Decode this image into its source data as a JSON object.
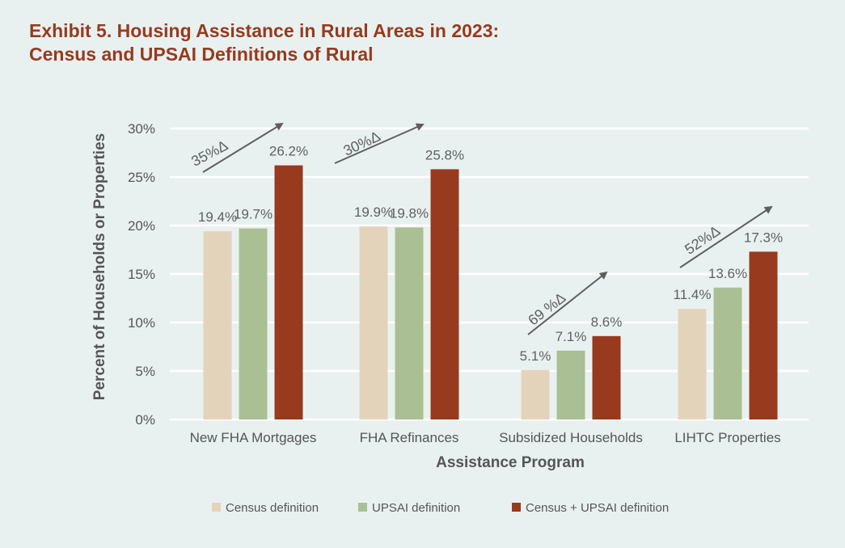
{
  "title_lines": [
    "Exhibit 5. Housing Assistance in Rural Areas in 2023:",
    "Census and UPSAI Definitions of Rural"
  ],
  "chart_data": {
    "type": "bar",
    "title": "Exhibit 5. Housing Assistance in Rural Areas in 2023: Census and UPSAI Definitions of Rural",
    "xlabel": "Assistance Program",
    "ylabel": "Percent of Households or Properties",
    "ylim": [
      0,
      30
    ],
    "yticks": [
      0,
      5,
      10,
      15,
      20,
      25,
      30
    ],
    "ytick_labels": [
      "0%",
      "5%",
      "10%",
      "15%",
      "20%",
      "25%",
      "30%"
    ],
    "grid": true,
    "legend_position": "bottom",
    "categories": [
      "New FHA Mortgages",
      "FHA Refinances",
      "Subsidized Households",
      "LIHTC Properties"
    ],
    "series": [
      {
        "name": "Census definition",
        "color": "#e4d3bb",
        "values": [
          19.4,
          19.9,
          5.1,
          11.4
        ],
        "labels": [
          "19.4%",
          "19.9%",
          "5.1%",
          "11.4%"
        ]
      },
      {
        "name": "UPSAI definition",
        "color": "#aabf93",
        "values": [
          19.7,
          19.8,
          7.1,
          13.6
        ],
        "labels": [
          "19.7%",
          "19.8%",
          "7.1%",
          "13.6%"
        ]
      },
      {
        "name": "Census + UPSAI definition",
        "color": "#973a1e",
        "values": [
          26.2,
          25.8,
          8.6,
          17.3
        ],
        "labels": [
          "26.2%",
          "25.8%",
          "8.6%",
          "17.3%"
        ]
      }
    ],
    "annotations": [
      "35%Δ",
      "30%Δ",
      "69 %Δ",
      "52%Δ"
    ]
  }
}
